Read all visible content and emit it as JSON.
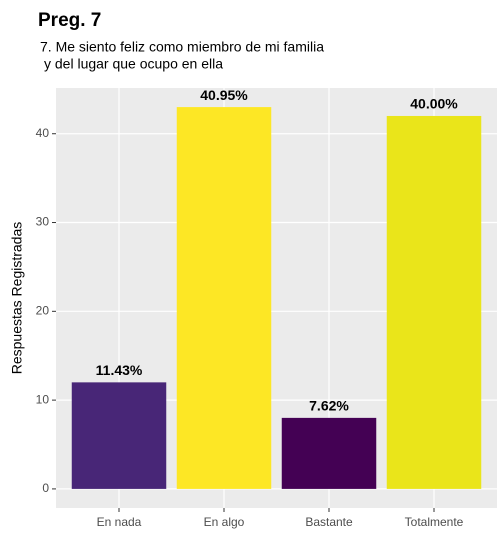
{
  "chart_data": {
    "type": "bar",
    "title": "Preg. 7",
    "subtitle": [
      "7. Me siento feliz como miembro de mi familia",
      "y del lugar que ocupo en ella"
    ],
    "y_label": "Respuestas Registradas",
    "categories": [
      "En nada",
      "En algo",
      "Bastante",
      "Totalmente"
    ],
    "values": [
      12,
      43,
      8,
      42
    ],
    "value_labels": [
      "11.43%",
      "40.95%",
      "7.62%",
      "40.00%"
    ],
    "colors": [
      "#482677",
      "#FDE725",
      "#440154",
      "#EAE51A"
    ],
    "ylim": [
      -2.15,
      45.15
    ],
    "yticks": [
      0,
      10,
      20,
      30,
      40
    ],
    "grid": true
  }
}
